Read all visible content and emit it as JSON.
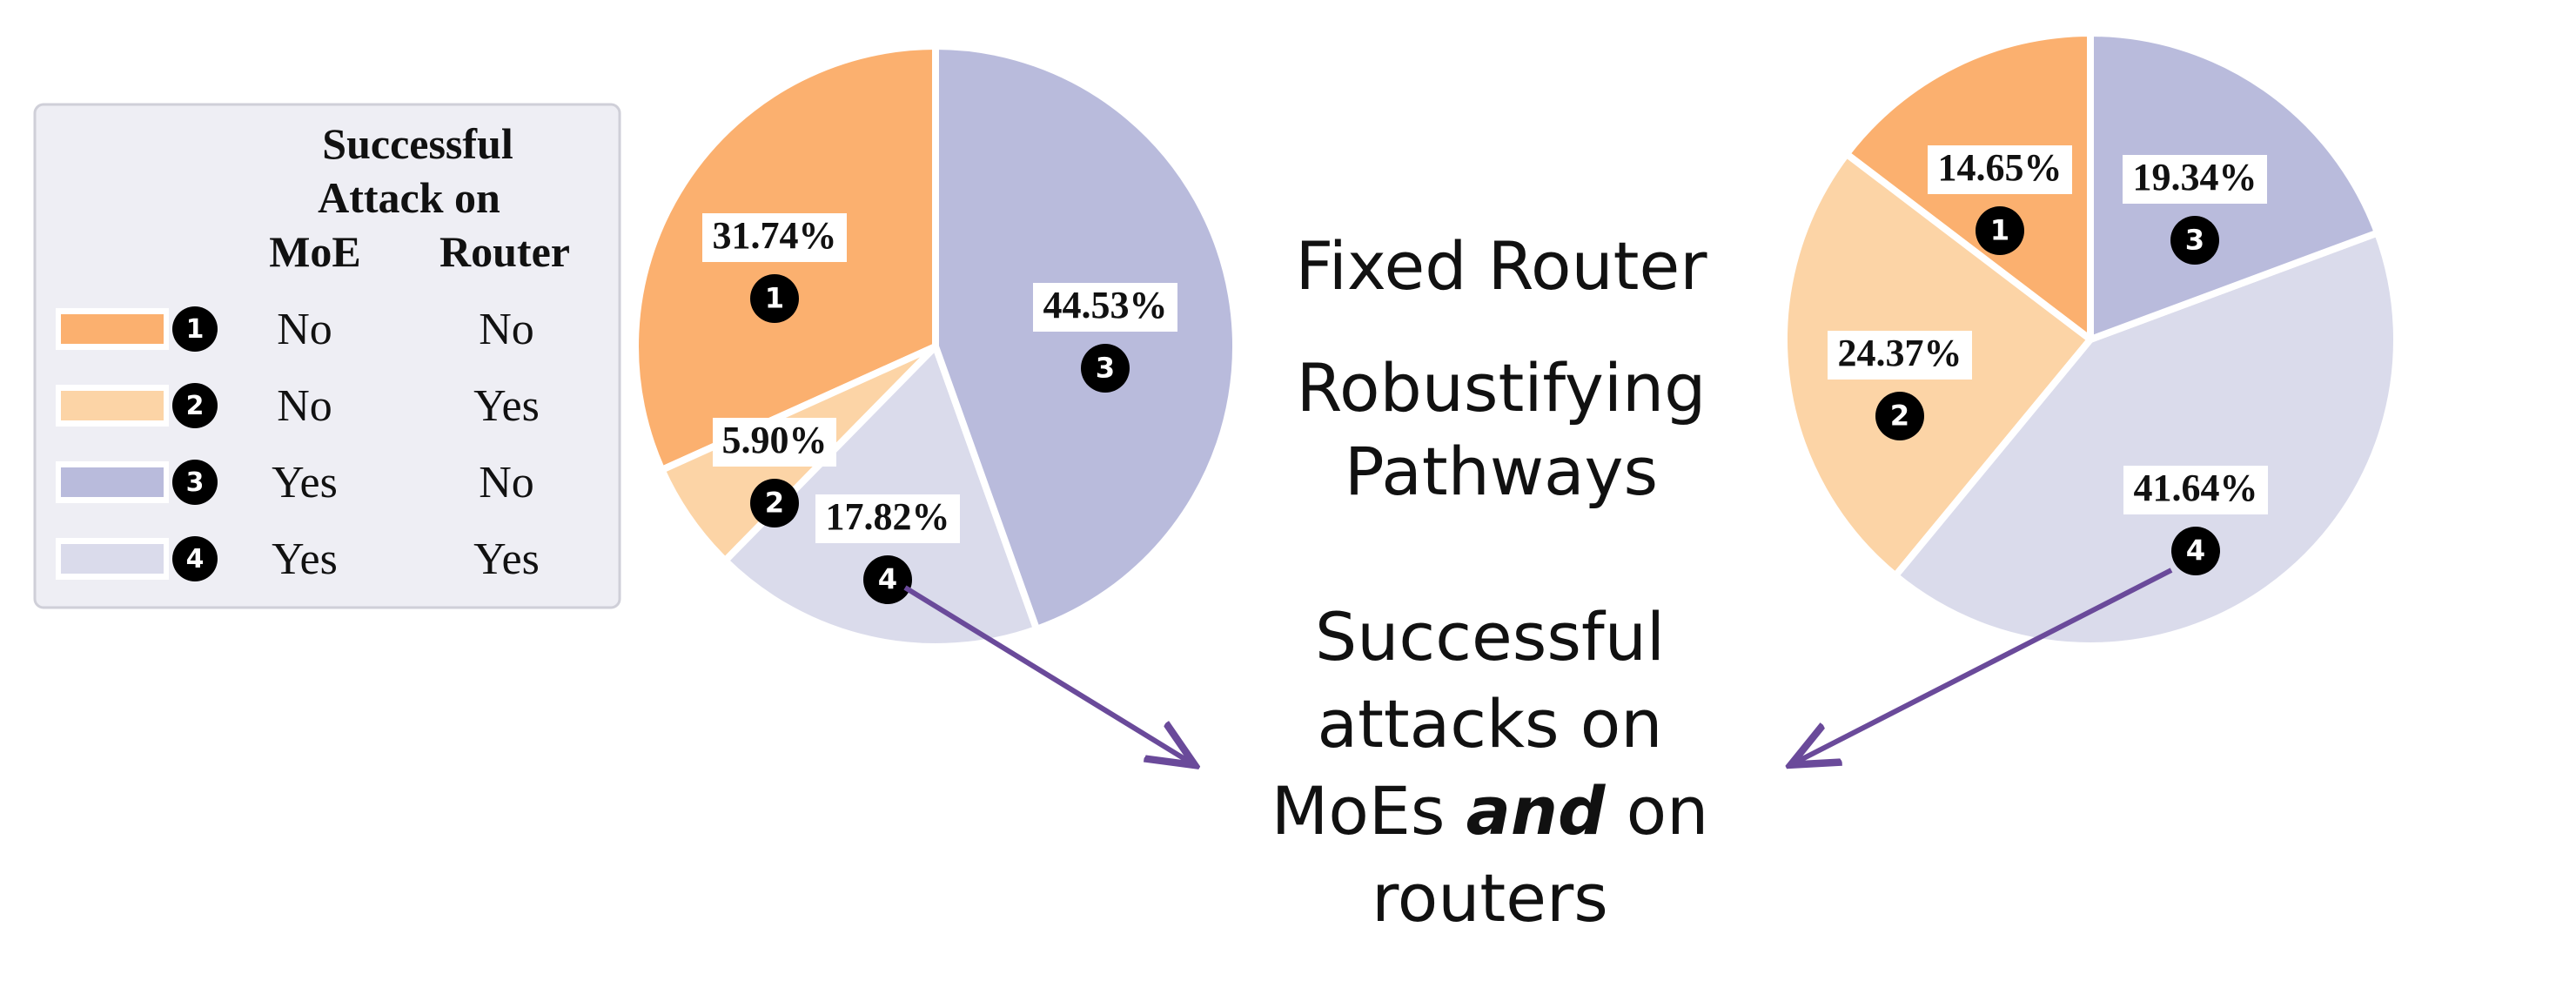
{
  "legend": {
    "header": {
      "line1": "Successful",
      "line2": "Attack on",
      "col_moe": "MoE",
      "col_router": "Router"
    },
    "rows": [
      {
        "marker": "1",
        "moe": "No",
        "router": "No",
        "color": "#fbb06f"
      },
      {
        "marker": "2",
        "moe": "No",
        "router": "Yes",
        "color": "#fcd4a6"
      },
      {
        "marker": "3",
        "moe": "Yes",
        "router": "No",
        "color": "#b9bbdc"
      },
      {
        "marker": "4",
        "moe": "Yes",
        "router": "Yes",
        "color": "#dadbeb"
      }
    ]
  },
  "annotations": {
    "left_title": "Fixed Router",
    "right_title_line1": "Robustifying",
    "right_title_line2": "Pathways",
    "caption_line1": "Successful",
    "caption_line2": "attacks on",
    "caption_line3_pre": "MoEs",
    "caption_line3_em": "and",
    "caption_line3_post": "on",
    "caption_line4": "routers"
  },
  "arrow_color": "#6a4a9a",
  "chart_data": [
    {
      "type": "pie",
      "title": "",
      "slices": [
        {
          "marker": "1",
          "label": "31.74%",
          "value": 31.74,
          "color": "#fbb06f"
        },
        {
          "marker": "2",
          "label": "5.90%",
          "value": 5.9,
          "color": "#fcd4a6"
        },
        {
          "marker": "4",
          "label": "17.82%",
          "value": 17.82,
          "color": "#dadbeb"
        },
        {
          "marker": "3",
          "label": "44.53%",
          "value": 44.53,
          "color": "#b9bbdc"
        }
      ]
    },
    {
      "type": "pie",
      "title": "",
      "slices": [
        {
          "marker": "1",
          "label": "14.65%",
          "value": 14.65,
          "color": "#fbb06f"
        },
        {
          "marker": "2",
          "label": "24.37%",
          "value": 24.37,
          "color": "#fcd4a6"
        },
        {
          "marker": "4",
          "label": "41.64%",
          "value": 41.64,
          "color": "#dadbeb"
        },
        {
          "marker": "3",
          "label": "19.34%",
          "value": 19.34,
          "color": "#b9bbdc"
        }
      ]
    }
  ]
}
